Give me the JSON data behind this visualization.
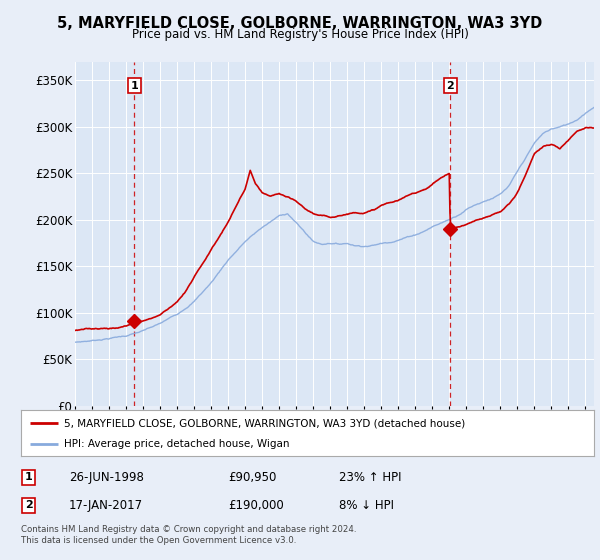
{
  "title": "5, MARYFIELD CLOSE, GOLBORNE, WARRINGTON, WA3 3YD",
  "subtitle": "Price paid vs. HM Land Registry's House Price Index (HPI)",
  "legend_line1": "5, MARYFIELD CLOSE, GOLBORNE, WARRINGTON, WA3 3YD (detached house)",
  "legend_line2": "HPI: Average price, detached house, Wigan",
  "annotation1_label": "1",
  "annotation1_date": "26-JUN-1998",
  "annotation1_price": "£90,950",
  "annotation1_hpi": "23% ↑ HPI",
  "annotation2_label": "2",
  "annotation2_date": "17-JAN-2017",
  "annotation2_price": "£190,000",
  "annotation2_hpi": "8% ↓ HPI",
  "footer": "Contains HM Land Registry data © Crown copyright and database right 2024.\nThis data is licensed under the Open Government Licence v3.0.",
  "bg_color": "#e8eef8",
  "plot_bg_color": "#dce7f5",
  "red_color": "#cc0000",
  "blue_color": "#88aadd",
  "dashed_color": "#cc0000",
  "ylim": [
    0,
    370000
  ],
  "yticks": [
    0,
    50000,
    100000,
    150000,
    200000,
    250000,
    300000,
    350000
  ],
  "ytick_labels": [
    "£0",
    "£50K",
    "£100K",
    "£150K",
    "£200K",
    "£250K",
    "£300K",
    "£350K"
  ],
  "sale1_year": 1998.49,
  "sale1_price": 90950,
  "sale2_year": 2017.05,
  "sale2_price": 190000,
  "xmin": 1995.0,
  "xmax": 2025.5,
  "hpi_knots": [
    [
      1995.0,
      65000
    ],
    [
      1996.0,
      67000
    ],
    [
      1997.0,
      70000
    ],
    [
      1998.0,
      73000
    ],
    [
      1999.0,
      78000
    ],
    [
      2000.0,
      85000
    ],
    [
      2001.0,
      95000
    ],
    [
      2002.0,
      110000
    ],
    [
      2003.0,
      130000
    ],
    [
      2004.0,
      155000
    ],
    [
      2005.0,
      175000
    ],
    [
      2006.0,
      190000
    ],
    [
      2007.0,
      202000
    ],
    [
      2007.5,
      205000
    ],
    [
      2008.0,
      195000
    ],
    [
      2008.5,
      185000
    ],
    [
      2009.0,
      175000
    ],
    [
      2009.5,
      172000
    ],
    [
      2010.0,
      174000
    ],
    [
      2010.5,
      173000
    ],
    [
      2011.0,
      174000
    ],
    [
      2011.5,
      172000
    ],
    [
      2012.0,
      172000
    ],
    [
      2012.5,
      173000
    ],
    [
      2013.0,
      175000
    ],
    [
      2013.5,
      177000
    ],
    [
      2014.0,
      180000
    ],
    [
      2014.5,
      183000
    ],
    [
      2015.0,
      186000
    ],
    [
      2015.5,
      190000
    ],
    [
      2016.0,
      195000
    ],
    [
      2016.5,
      199000
    ],
    [
      2017.0,
      203000
    ],
    [
      2017.5,
      208000
    ],
    [
      2018.0,
      215000
    ],
    [
      2018.5,
      220000
    ],
    [
      2019.0,
      224000
    ],
    [
      2019.5,
      228000
    ],
    [
      2020.0,
      232000
    ],
    [
      2020.5,
      240000
    ],
    [
      2021.0,
      255000
    ],
    [
      2021.5,
      270000
    ],
    [
      2022.0,
      285000
    ],
    [
      2022.5,
      295000
    ],
    [
      2023.0,
      300000
    ],
    [
      2023.5,
      302000
    ],
    [
      2024.0,
      305000
    ],
    [
      2024.5,
      310000
    ],
    [
      2025.0,
      318000
    ],
    [
      2025.5,
      325000
    ]
  ],
  "red_knots": [
    [
      1995.0,
      82000
    ],
    [
      1995.5,
      82500
    ],
    [
      1996.0,
      83000
    ],
    [
      1996.5,
      84000
    ],
    [
      1997.0,
      84500
    ],
    [
      1997.5,
      85000
    ],
    [
      1998.0,
      87000
    ],
    [
      1998.49,
      90950
    ],
    [
      1999.0,
      93000
    ],
    [
      1999.5,
      96000
    ],
    [
      2000.0,
      100000
    ],
    [
      2000.5,
      107000
    ],
    [
      2001.0,
      115000
    ],
    [
      2001.5,
      125000
    ],
    [
      2002.0,
      140000
    ],
    [
      2002.5,
      155000
    ],
    [
      2003.0,
      170000
    ],
    [
      2003.5,
      185000
    ],
    [
      2004.0,
      200000
    ],
    [
      2004.5,
      218000
    ],
    [
      2005.0,
      235000
    ],
    [
      2005.3,
      255000
    ],
    [
      2005.6,
      240000
    ],
    [
      2006.0,
      230000
    ],
    [
      2006.5,
      225000
    ],
    [
      2007.0,
      228000
    ],
    [
      2007.3,
      225000
    ],
    [
      2007.6,
      222000
    ],
    [
      2008.0,
      218000
    ],
    [
      2008.5,
      210000
    ],
    [
      2009.0,
      205000
    ],
    [
      2009.5,
      202000
    ],
    [
      2010.0,
      200000
    ],
    [
      2010.5,
      203000
    ],
    [
      2011.0,
      205000
    ],
    [
      2011.5,
      207000
    ],
    [
      2012.0,
      208000
    ],
    [
      2012.5,
      210000
    ],
    [
      2013.0,
      215000
    ],
    [
      2013.5,
      218000
    ],
    [
      2014.0,
      220000
    ],
    [
      2014.5,
      224000
    ],
    [
      2015.0,
      228000
    ],
    [
      2015.5,
      232000
    ],
    [
      2016.0,
      238000
    ],
    [
      2016.5,
      245000
    ],
    [
      2017.0,
      250000
    ],
    [
      2017.05,
      190000
    ],
    [
      2017.5,
      192000
    ],
    [
      2018.0,
      195000
    ],
    [
      2018.5,
      198000
    ],
    [
      2019.0,
      200000
    ],
    [
      2019.5,
      203000
    ],
    [
      2020.0,
      207000
    ],
    [
      2020.5,
      215000
    ],
    [
      2021.0,
      228000
    ],
    [
      2021.5,
      248000
    ],
    [
      2022.0,
      270000
    ],
    [
      2022.5,
      278000
    ],
    [
      2023.0,
      280000
    ],
    [
      2023.5,
      275000
    ],
    [
      2024.0,
      285000
    ],
    [
      2024.5,
      295000
    ],
    [
      2025.0,
      300000
    ],
    [
      2025.5,
      300000
    ]
  ]
}
